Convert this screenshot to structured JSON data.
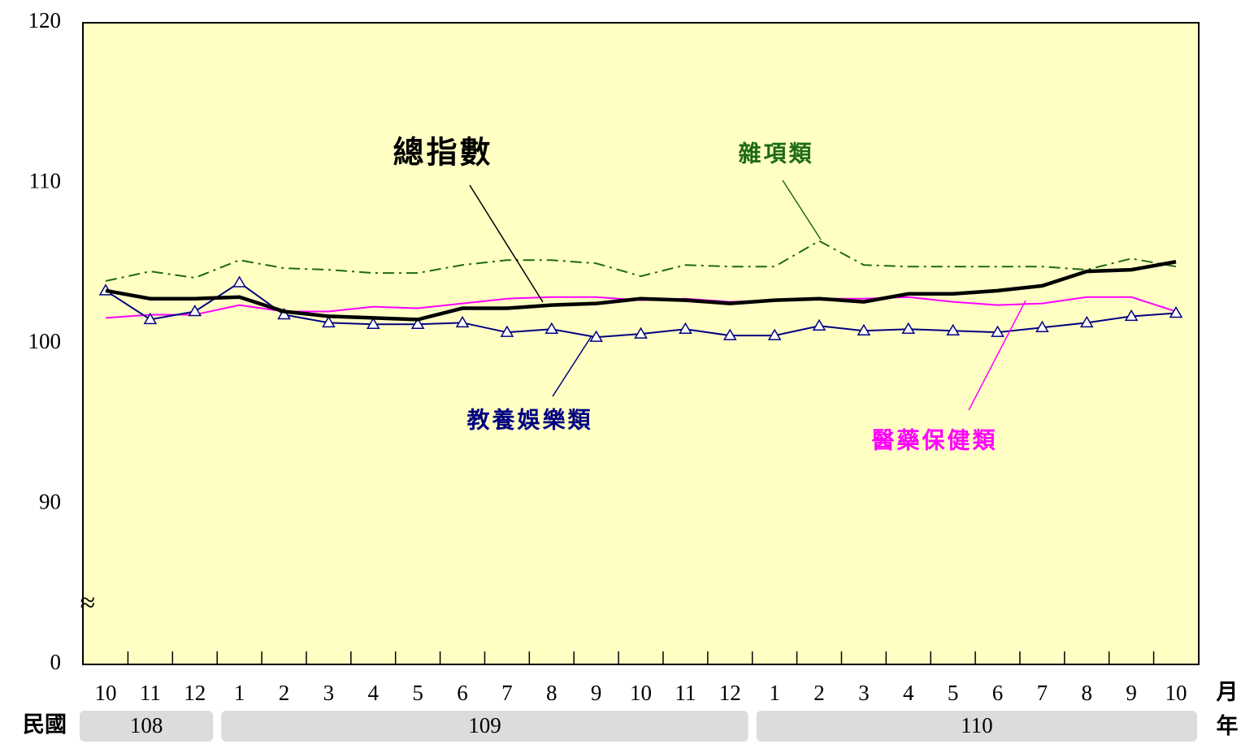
{
  "chart_data": {
    "type": "line",
    "categories": [
      "10",
      "11",
      "12",
      "1",
      "2",
      "3",
      "4",
      "5",
      "6",
      "7",
      "8",
      "9",
      "10",
      "11",
      "12",
      "1",
      "2",
      "3",
      "4",
      "5",
      "6",
      "7",
      "8",
      "9",
      "10"
    ],
    "x_unit": "月",
    "group_prefix": "民國",
    "group_unit": "年",
    "year_groups": [
      {
        "label": "108",
        "months": 3
      },
      {
        "label": "109",
        "months": 12
      },
      {
        "label": "110",
        "months": 10
      }
    ],
    "ylim": [
      0,
      120
    ],
    "yticks": [
      0,
      90,
      100,
      110,
      120
    ],
    "axis_break": {
      "from": 0,
      "to": 80,
      "symbol": "≈"
    },
    "background": "#ffffc4",
    "series": [
      {
        "name": "總指數",
        "color": "#000000",
        "style": "solid",
        "width": 4.5,
        "values": [
          103.3,
          102.8,
          102.8,
          102.9,
          102.0,
          101.7,
          101.6,
          101.5,
          102.2,
          102.2,
          102.4,
          102.5,
          102.8,
          102.7,
          102.5,
          102.7,
          102.8,
          102.6,
          103.1,
          103.1,
          103.3,
          103.6,
          104.5,
          104.6,
          105.1
        ]
      },
      {
        "name": "雜項類",
        "color": "#1e6b12",
        "style": "dashdot",
        "width": 2,
        "values": [
          103.9,
          104.5,
          104.1,
          105.2,
          104.7,
          104.6,
          104.4,
          104.4,
          104.9,
          105.2,
          105.2,
          105.0,
          104.2,
          104.9,
          104.8,
          104.8,
          106.4,
          104.9,
          104.8,
          104.8,
          104.8,
          104.8,
          104.6,
          105.3,
          104.8
        ]
      },
      {
        "name": "醫藥保健類",
        "color": "#ff00ff",
        "style": "solid",
        "width": 2,
        "values": [
          101.6,
          101.8,
          101.8,
          102.4,
          102.0,
          102.0,
          102.3,
          102.2,
          102.5,
          102.8,
          102.9,
          102.9,
          102.7,
          102.8,
          102.6,
          102.7,
          102.8,
          102.8,
          102.9,
          102.6,
          102.4,
          102.5,
          102.9,
          102.9,
          102.0
        ]
      },
      {
        "name": "教養娛樂類",
        "color": "#000080",
        "style": "solid",
        "width": 2,
        "marker": "triangle",
        "values": [
          103.3,
          101.5,
          102.0,
          103.8,
          101.8,
          101.3,
          101.2,
          101.2,
          101.3,
          100.7,
          100.9,
          100.4,
          100.6,
          100.9,
          100.5,
          100.5,
          101.1,
          100.8,
          100.9,
          100.8,
          100.7,
          101.0,
          101.3,
          101.7,
          101.9
        ]
      }
    ]
  }
}
